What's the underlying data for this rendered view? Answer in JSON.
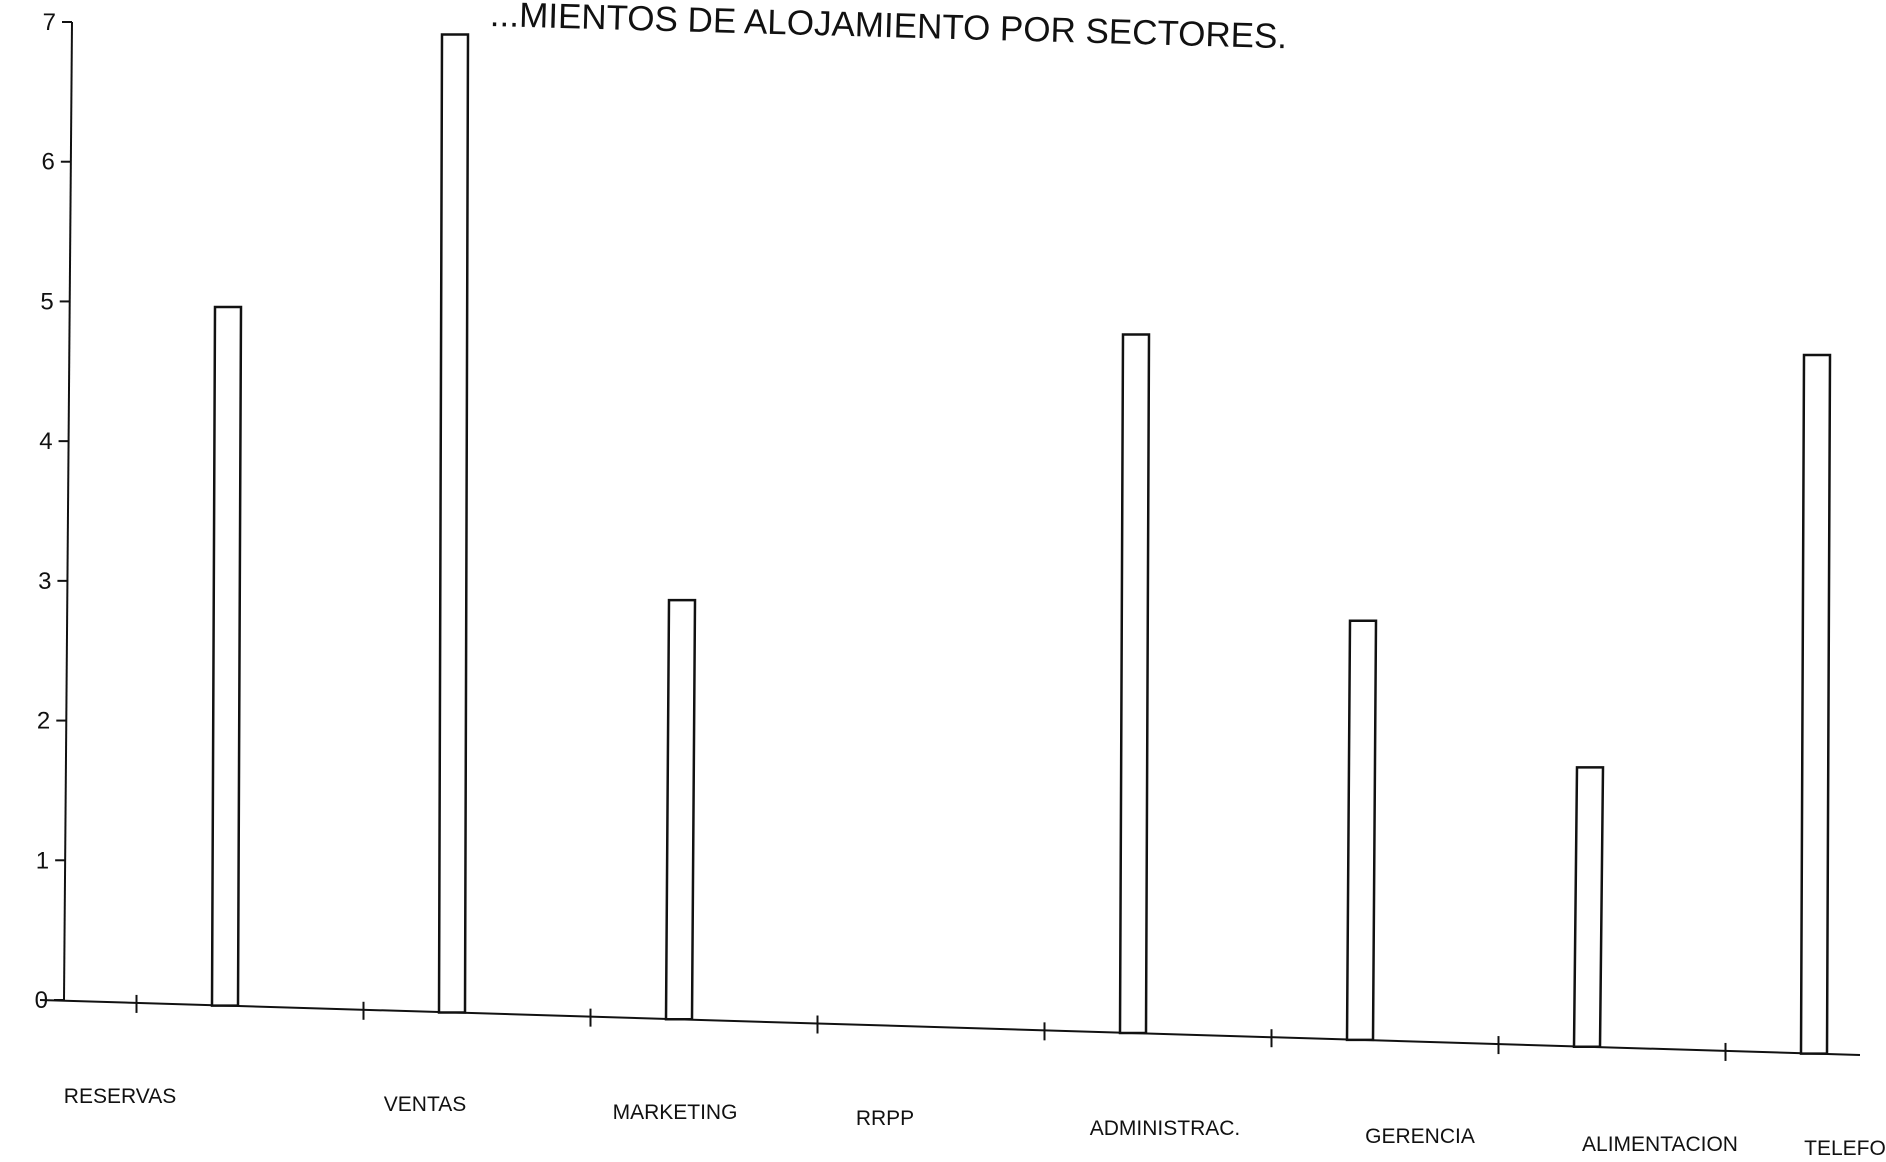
{
  "chart_data": {
    "type": "bar",
    "title": "...MIENTOS DE ALOJAMIENTO POR SECTORES.",
    "categories": [
      "RESERVAS",
      "VENTAS",
      "MARKETING",
      "RRPP",
      "ADMINISTRAC.",
      "GERENCIA",
      "ALIMENTACION",
      "TELEFO"
    ],
    "values": [
      5.0,
      7.0,
      3.0,
      0,
      5.0,
      3.0,
      2.0,
      5.0
    ],
    "ylim": [
      0,
      7
    ],
    "yticks": [
      "0",
      "1",
      "2",
      "3",
      "4",
      "5",
      "6",
      "7"
    ],
    "xlabel": "",
    "ylabel": "",
    "grid": false,
    "legend": "none",
    "colors": {
      "bar_fill": "#ffffff",
      "bar_stroke": "#111111",
      "axis": "#111111"
    }
  }
}
